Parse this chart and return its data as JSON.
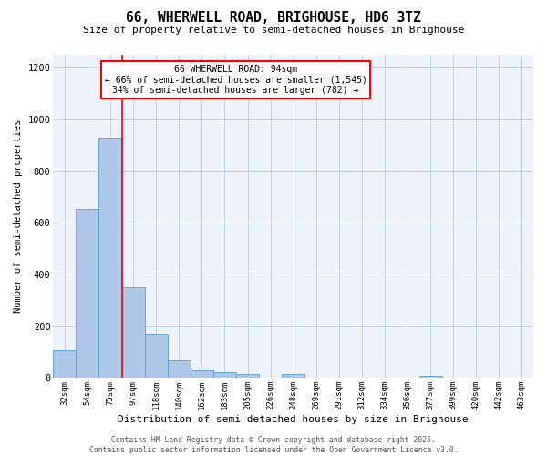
{
  "title": "66, WHERWELL ROAD, BRIGHOUSE, HD6 3TZ",
  "subtitle": "Size of property relative to semi-detached houses in Brighouse",
  "xlabel": "Distribution of semi-detached houses by size in Brighouse",
  "ylabel": "Number of semi-detached properties",
  "categories": [
    "32sqm",
    "54sqm",
    "75sqm",
    "97sqm",
    "118sqm",
    "140sqm",
    "162sqm",
    "183sqm",
    "205sqm",
    "226sqm",
    "248sqm",
    "269sqm",
    "291sqm",
    "312sqm",
    "334sqm",
    "356sqm",
    "377sqm",
    "399sqm",
    "420sqm",
    "442sqm",
    "463sqm"
  ],
  "values": [
    107,
    655,
    930,
    350,
    170,
    70,
    28,
    22,
    14,
    0,
    17,
    0,
    0,
    0,
    0,
    0,
    7,
    0,
    0,
    0,
    0
  ],
  "bar_color": "#aec6e8",
  "bar_edge_color": "#5a9fd4",
  "grid_color": "#c8d0e0",
  "vline_x": 2.5,
  "vline_color": "red",
  "annotation_title": "66 WHERWELL ROAD: 94sqm",
  "annotation_line1": "← 66% of semi-detached houses are smaller (1,545)",
  "annotation_line2": "34% of semi-detached houses are larger (782) →",
  "annotation_box_color": "red",
  "ylim": [
    0,
    1250
  ],
  "yticks": [
    0,
    200,
    400,
    600,
    800,
    1000,
    1200
  ],
  "footer_line1": "Contains HM Land Registry data © Crown copyright and database right 2025.",
  "footer_line2": "Contains public sector information licensed under the Open Government Licence v3.0.",
  "bg_color": "#eef2fb",
  "fig_bg_color": "#ffffff"
}
